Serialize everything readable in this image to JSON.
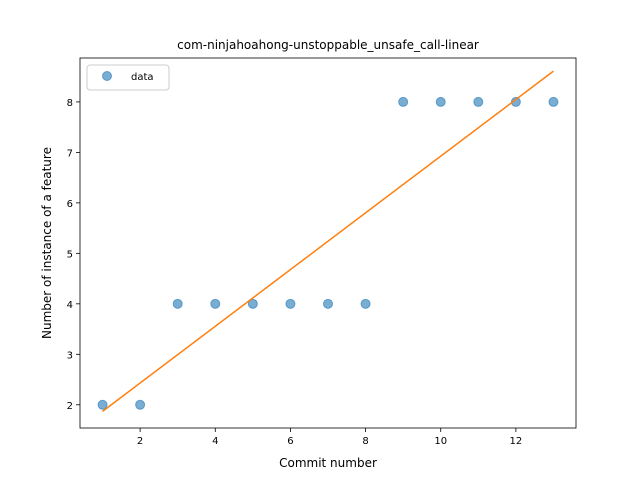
{
  "chart_data": {
    "type": "scatter",
    "title": "com-ninjahoahong-unstoppable_unsafe_call-linear",
    "xlabel": "Commit number",
    "ylabel": "Number of instance of a feature",
    "xlim": [
      0.4,
      13.6
    ],
    "ylim": [
      1.54,
      8.87
    ],
    "x_ticks": [
      2,
      4,
      6,
      8,
      10,
      12
    ],
    "y_ticks": [
      2,
      3,
      4,
      5,
      6,
      7,
      8
    ],
    "grid": false,
    "legend_position": "upper-left",
    "series": [
      {
        "name": "data",
        "kind": "scatter",
        "color": "#1f77b4",
        "x": [
          1,
          2,
          3,
          4,
          5,
          6,
          7,
          8,
          9,
          10,
          11,
          12,
          13
        ],
        "y": [
          2,
          2,
          4,
          4,
          4,
          4,
          4,
          4,
          8,
          8,
          8,
          8,
          8
        ]
      },
      {
        "kind": "line",
        "color": "#ff7f0e",
        "x": [
          1,
          13
        ],
        "y": [
          1.87,
          8.61
        ]
      }
    ]
  }
}
